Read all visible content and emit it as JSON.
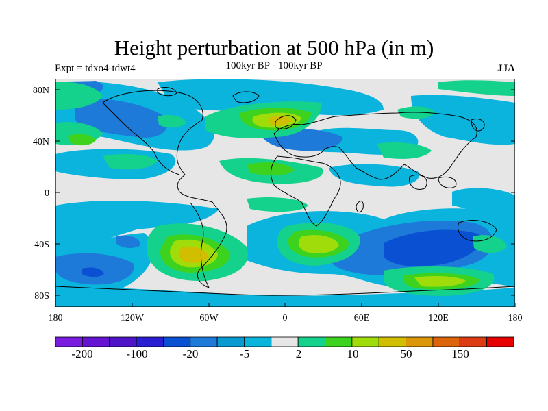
{
  "title": "Height perturbation at 500 hPa (in m)",
  "subtitle": "100kyr BP - 100kyr BP",
  "experiment": "Expt = tdxo4-tdwt4",
  "season": "JJA",
  "axes": {
    "lat_ticks": [
      "80N",
      "40N",
      "0",
      "40S",
      "80S"
    ],
    "lon_ticks": [
      "180",
      "120W",
      "60W",
      "0",
      "60E",
      "120E",
      "180"
    ]
  },
  "colorbar": {
    "colors": [
      "#7a1ce0",
      "#6414d2",
      "#4f14c8",
      "#2a1ed2",
      "#0a50d2",
      "#1e7ad8",
      "#0a9ad2",
      "#0ab4dc",
      "#e6e6e6",
      "#14d28c",
      "#3cd21e",
      "#a0dc0a",
      "#d2be00",
      "#dc960a",
      "#dc640a",
      "#dc3c14",
      "#e60000"
    ],
    "labels": [
      "-200",
      "-100",
      "-20",
      "-5",
      "2",
      "10",
      "50",
      "150"
    ]
  },
  "palette": {
    "neutral": "#e6e6e6",
    "cyan": "#0ab4dc",
    "blue": "#1e7ad8",
    "deep_blue": "#0a50d2",
    "green": "#14d28c",
    "yellow_green": "#a0dc0a",
    "yellow": "#d2be00"
  }
}
